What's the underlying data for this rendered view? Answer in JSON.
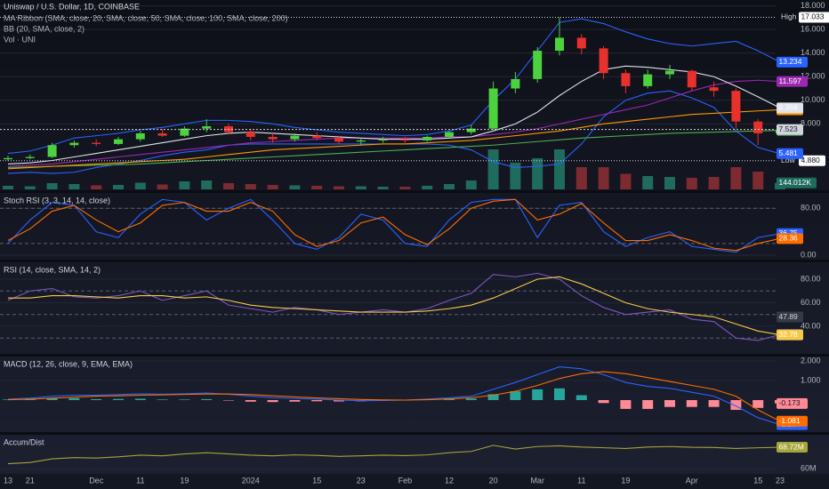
{
  "chart_data": [
    {
      "type": "candlestick",
      "title": "Uniswap / U.S. Dollar, 1D, COINBASE",
      "indicators": [
        "MA Ribbon (SMA, close, 20, SMA, close, 50, SMA, close, 100, SMA, close, 200)",
        "BB (20, SMA, close, 2)",
        "Vol · UNI"
      ],
      "categories": [
        "13",
        "21",
        null,
        null,
        "Dec",
        null,
        "11",
        null,
        "19",
        null,
        null,
        "2024",
        null,
        null,
        "15",
        null,
        "23",
        null,
        "Feb",
        null,
        "12",
        null,
        "20",
        null,
        "Mar",
        null,
        "11",
        null,
        "19",
        null,
        null,
        "Apr",
        null,
        null,
        "15",
        "23"
      ],
      "ylim": [
        2.3,
        18.5
      ],
      "yticks": [
        {
          "value": 18,
          "label": "18.000"
        },
        {
          "value": 16,
          "label": "16.000"
        },
        {
          "value": 14,
          "label": "14.000"
        },
        {
          "value": 12,
          "label": "12.000"
        },
        {
          "value": 10,
          "label": "10.000"
        },
        {
          "value": 8,
          "label": "8.000"
        }
      ],
      "up_color": "#4cd13f",
      "down_color": "#e8312c",
      "open": [
        5.0,
        5.1,
        5.2,
        6.2,
        6.4,
        6.3,
        6.7,
        7.2,
        7.0,
        7.6,
        7.8,
        7.3,
        6.9,
        6.7,
        7.0,
        6.8,
        6.5,
        6.6,
        6.7,
        6.6,
        6.9,
        7.3,
        7.6,
        11.0,
        11.8,
        14.2,
        15.3,
        14.4,
        12.3,
        11.2,
        12.2,
        12.5,
        11.1,
        10.8,
        8.2,
        7.2
      ],
      "high": [
        5.3,
        5.4,
        6.4,
        6.6,
        6.7,
        6.9,
        7.4,
        7.6,
        7.8,
        8.4,
        8.0,
        7.6,
        7.2,
        7.2,
        7.3,
        7.0,
        6.8,
        6.9,
        6.9,
        7.0,
        7.4,
        7.9,
        11.6,
        12.4,
        14.5,
        17.033,
        15.6,
        14.6,
        12.6,
        12.6,
        13.0,
        12.6,
        11.6,
        11.0,
        8.4,
        7.7
      ],
      "low": [
        4.88,
        5.0,
        5.1,
        6.0,
        6.1,
        6.2,
        6.5,
        6.9,
        6.9,
        7.3,
        7.1,
        6.6,
        6.4,
        6.5,
        6.6,
        6.3,
        6.2,
        6.4,
        6.4,
        6.5,
        6.8,
        7.1,
        7.5,
        10.6,
        11.5,
        13.8,
        13.9,
        11.8,
        10.6,
        11.0,
        11.8,
        10.8,
        10.3,
        7.6,
        6.2,
        7.0
      ],
      "close": [
        5.1,
        5.2,
        6.2,
        6.4,
        6.3,
        6.7,
        7.2,
        7.0,
        7.6,
        7.8,
        7.3,
        6.9,
        6.7,
        7.0,
        6.8,
        6.5,
        6.6,
        6.7,
        6.6,
        6.9,
        7.3,
        7.6,
        11.0,
        11.8,
        14.2,
        15.3,
        14.4,
        12.3,
        11.2,
        12.2,
        12.5,
        11.1,
        10.8,
        8.2,
        7.2,
        7.523
      ],
      "close_label": "7.523",
      "close_badge_color": "#d1d4dc",
      "extremes": [
        {
          "label": "High",
          "value": 17.033,
          "value_label": "17.033"
        },
        {
          "label": "Low",
          "value": 4.88,
          "value_label": "4.880"
        }
      ],
      "series": [
        {
          "color": "#2962ff",
          "end_label": "13.234",
          "values": [
            5.5,
            5.7,
            6.2,
            6.8,
            7.0,
            7.2,
            7.5,
            7.7,
            8.0,
            8.3,
            8.3,
            8.2,
            8.0,
            7.7,
            7.5,
            7.3,
            7.2,
            7.1,
            7.0,
            7.1,
            7.4,
            7.9,
            10.0,
            11.8,
            14.2,
            16.6,
            16.9,
            16.5,
            15.8,
            15.2,
            14.8,
            14.6,
            14.8,
            15.0,
            14.2,
            13.234
          ]
        },
        {
          "color": "#2962ff",
          "end_label": "5.481",
          "values": [
            3.8,
            3.9,
            3.8,
            3.9,
            4.3,
            4.6,
            4.9,
            5.3,
            5.6,
            5.8,
            6.2,
            6.3,
            6.3,
            6.3,
            6.3,
            6.3,
            6.3,
            6.3,
            6.3,
            6.3,
            6.2,
            5.8,
            4.8,
            4.3,
            4.4,
            4.6,
            6.3,
            8.6,
            10.0,
            10.6,
            10.8,
            10.2,
            9.4,
            7.4,
            6.0,
            5.481
          ]
        },
        {
          "color": "#4caf50",
          "end_label": "7.455",
          "values": [
            4.3,
            4.35,
            4.4,
            4.45,
            4.5,
            4.55,
            4.6,
            4.7,
            4.8,
            4.9,
            5.0,
            5.1,
            5.2,
            5.3,
            5.4,
            5.5,
            5.6,
            5.7,
            5.8,
            5.9,
            6.0,
            6.1,
            6.2,
            6.35,
            6.5,
            6.65,
            6.8,
            6.9,
            7.0,
            7.1,
            7.2,
            7.25,
            7.3,
            7.35,
            7.4,
            7.455
          ]
        },
        {
          "color": "#ff9800",
          "end_label": "9.199",
          "values": [
            4.2,
            4.3,
            4.4,
            4.5,
            4.6,
            4.7,
            4.8,
            4.9,
            5.0,
            5.2,
            5.4,
            5.6,
            5.8,
            5.9,
            6.0,
            6.1,
            6.2,
            6.3,
            6.3,
            6.4,
            6.5,
            6.6,
            6.8,
            7.0,
            7.2,
            7.4,
            7.7,
            8.0,
            8.2,
            8.4,
            8.6,
            8.8,
            8.9,
            9.0,
            9.1,
            9.199
          ]
        },
        {
          "color": "#9c27b0",
          "end_label": "11.597",
          "values": [
            4.4,
            4.5,
            4.6,
            4.8,
            5.0,
            5.2,
            5.4,
            5.6,
            5.8,
            6.0,
            6.2,
            6.4,
            6.5,
            6.6,
            6.7,
            6.8,
            6.8,
            6.8,
            6.8,
            6.8,
            6.9,
            6.9,
            7.1,
            7.3,
            7.6,
            8.0,
            8.4,
            8.8,
            9.2,
            9.6,
            10.2,
            10.8,
            11.3,
            11.6,
            11.7,
            11.597
          ]
        },
        {
          "color": "#e0e3eb",
          "end_label": "9.358",
          "values": [
            4.6,
            4.7,
            4.9,
            5.2,
            5.5,
            5.8,
            6.1,
            6.4,
            6.7,
            7.0,
            7.2,
            7.3,
            7.2,
            7.1,
            7.0,
            6.9,
            6.8,
            6.7,
            6.7,
            6.7,
            6.8,
            6.9,
            7.4,
            8.0,
            9.0,
            10.4,
            11.6,
            12.6,
            12.9,
            12.8,
            12.6,
            12.4,
            12.0,
            11.2,
            10.3,
            9.358
          ]
        }
      ],
      "volume": [
        80000,
        70000,
        140000,
        120000,
        90000,
        100000,
        150000,
        110000,
        180000,
        200000,
        140000,
        120000,
        100000,
        90000,
        80000,
        70000,
        70000,
        60000,
        60000,
        80000,
        120000,
        200000,
        900000,
        600000,
        700000,
        900000,
        500000,
        500000,
        350000,
        300000,
        280000,
        260000,
        280000,
        500000,
        400000,
        144012
      ],
      "volume_ylim": [
        0,
        1000000
      ],
      "volume_label": "144.012K",
      "volume_up_color": "#1f6b5e",
      "volume_down_color": "#7d2a30"
    },
    {
      "type": "line",
      "title": "Stoch RSI (3, 3, 14, 14, close)",
      "ylim": [
        -6,
        104.6
      ],
      "yticks": [
        {
          "value": 80,
          "label": "80.00"
        },
        {
          "value": 0,
          "label": "0.00"
        }
      ],
      "hlines": [
        80,
        20
      ],
      "series": [
        {
          "color": "#2962ff",
          "end_label": "36.75",
          "values": [
            20,
            60,
            90,
            85,
            40,
            30,
            70,
            95,
            90,
            60,
            80,
            95,
            60,
            20,
            10,
            30,
            70,
            60,
            20,
            15,
            60,
            90,
            95,
            95,
            30,
            85,
            90,
            40,
            15,
            30,
            40,
            15,
            10,
            5,
            30,
            36.75
          ]
        },
        {
          "color": "#ff6d00",
          "end_label": "28.36",
          "values": [
            25,
            45,
            75,
            85,
            60,
            40,
            55,
            85,
            90,
            75,
            75,
            90,
            75,
            35,
            15,
            25,
            55,
            65,
            35,
            18,
            45,
            80,
            92,
            95,
            60,
            70,
            88,
            55,
            25,
            25,
            35,
            25,
            12,
            8,
            20,
            28.36
          ]
        }
      ]
    },
    {
      "type": "line",
      "title": "RSI (14, close, SMA, 14, 2)",
      "ylim": [
        16.6,
        93.6
      ],
      "yticks": [
        {
          "value": 80,
          "label": "80.00"
        },
        {
          "value": 60,
          "label": "60.00"
        },
        {
          "value": 40,
          "label": "40.00"
        }
      ],
      "hlines": [
        70,
        50,
        30
      ],
      "badges": [
        {
          "value": 47.89,
          "label": "47.89",
          "color": "#363a45"
        }
      ],
      "series": [
        {
          "color": "#7e57c2",
          "end_label": "32.91",
          "values": [
            62,
            70,
            72,
            65,
            64,
            66,
            70,
            62,
            66,
            70,
            58,
            55,
            52,
            56,
            54,
            50,
            52,
            54,
            52,
            55,
            62,
            68,
            84,
            82,
            85,
            80,
            66,
            56,
            50,
            52,
            54,
            46,
            44,
            30,
            28,
            32.91
          ]
        },
        {
          "color": "#f7c948",
          "end_label": "32.78",
          "values": [
            64,
            64,
            66,
            66,
            65,
            64,
            66,
            66,
            64,
            65,
            62,
            58,
            56,
            55,
            54,
            53,
            52,
            52,
            52,
            53,
            55,
            58,
            64,
            72,
            80,
            82,
            76,
            68,
            60,
            55,
            52,
            50,
            48,
            42,
            36,
            32.78
          ]
        }
      ]
    },
    {
      "type": "macd",
      "title": "MACD (12, 26, close, 9, EMA, EMA)",
      "ylim": [
        -1.68,
        2.18
      ],
      "yticks": [
        {
          "value": 2,
          "label": "2.000"
        },
        {
          "value": 1,
          "label": "1.000"
        }
      ],
      "histogram": [
        0.03,
        0.05,
        0.1,
        0.1,
        0.05,
        0.06,
        0.07,
        0.03,
        0.03,
        0.05,
        -0.01,
        -0.08,
        -0.1,
        -0.08,
        -0.06,
        -0.07,
        -0.06,
        -0.03,
        0.0,
        0.03,
        0.06,
        0.08,
        0.3,
        0.45,
        0.55,
        0.6,
        0.25,
        -0.15,
        -0.45,
        -0.45,
        -0.35,
        -0.35,
        -0.35,
        -0.5,
        -0.4,
        -0.173
      ],
      "histogram_label": "-0.173",
      "up_color": "#26a69a",
      "down_color": "#ff8a95",
      "series": [
        {
          "color": "#2962ff",
          "end_label": "-1.254",
          "values": [
            0.05,
            0.1,
            0.2,
            0.25,
            0.25,
            0.28,
            0.32,
            0.3,
            0.32,
            0.36,
            0.3,
            0.2,
            0.12,
            0.08,
            0.05,
            0.0,
            -0.03,
            -0.02,
            0.0,
            0.05,
            0.12,
            0.2,
            0.55,
            0.9,
            1.3,
            1.7,
            1.6,
            1.3,
            0.9,
            0.7,
            0.6,
            0.4,
            0.2,
            -0.3,
            -0.9,
            -1.254
          ]
        },
        {
          "color": "#ff6d00",
          "end_label": "-1.081",
          "values": [
            0.02,
            0.05,
            0.1,
            0.15,
            0.2,
            0.22,
            0.25,
            0.27,
            0.29,
            0.31,
            0.31,
            0.28,
            0.22,
            0.16,
            0.11,
            0.07,
            0.03,
            0.01,
            0.0,
            0.02,
            0.06,
            0.12,
            0.25,
            0.45,
            0.75,
            1.1,
            1.35,
            1.45,
            1.35,
            1.15,
            0.95,
            0.75,
            0.55,
            0.2,
            -0.5,
            -1.081
          ]
        }
      ]
    },
    {
      "type": "line",
      "title": "Accum/Dist",
      "ylim": [
        58.2,
        73.45
      ],
      "yticks": [
        {
          "value": 60,
          "label": "60M"
        }
      ],
      "series": [
        {
          "color": "#a5a53a",
          "end_label": "68.72M",
          "values": [
            62,
            62.5,
            64,
            64.5,
            64.3,
            64.8,
            65.5,
            65.2,
            66,
            66.5,
            66,
            65.5,
            65.2,
            65.6,
            65.4,
            65,
            65.2,
            65.5,
            65.3,
            65.6,
            66.5,
            67,
            69.5,
            68,
            69,
            69.3,
            68.8,
            68.5,
            68.2,
            68.8,
            69,
            68.7,
            68.6,
            68.2,
            68.5,
            68.72
          ]
        }
      ]
    }
  ]
}
